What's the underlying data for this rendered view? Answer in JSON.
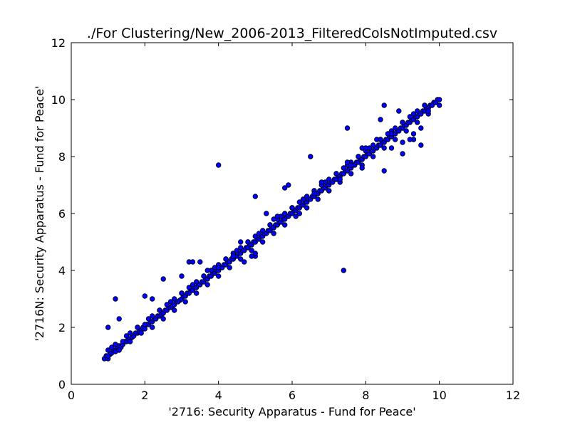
{
  "chart_data": {
    "type": "scatter",
    "title": "./For Clustering/New_2006-2013_FilteredColsNotImputed.csv",
    "xlabel": "'2716: Security Apparatus - Fund for Peace'",
    "ylabel": "'2716N: Security Apparatus - Fund for Peace'",
    "xlim": [
      0,
      12
    ],
    "ylim": [
      0,
      12
    ],
    "xticks": [
      "0",
      "2",
      "4",
      "6",
      "8",
      "10",
      "12"
    ],
    "yticks": [
      "0",
      "2",
      "4",
      "6",
      "8",
      "10",
      "12"
    ],
    "grid": false,
    "legend": "none",
    "marker_color": "#0000ff",
    "marker_edge_color": "#000000",
    "series": [
      {
        "x": [
          0.9,
          0.95,
          1.0,
          1.05,
          1.1,
          1.15,
          1.2,
          1.25,
          1.3,
          1.35,
          1.4,
          1.45,
          1.5,
          1.55,
          1.6,
          1.65,
          1.7,
          1.75,
          1.8,
          1.85,
          1.9,
          1.95,
          2.0,
          2.05,
          2.1,
          2.15,
          2.2,
          2.25,
          2.3,
          2.35,
          2.4,
          2.45,
          2.5,
          2.55,
          2.6,
          2.65,
          2.7,
          2.75,
          2.8,
          2.85,
          2.9,
          2.95,
          3.0,
          3.05,
          3.1,
          3.15,
          3.2,
          3.25,
          3.3,
          3.35,
          3.4,
          3.45,
          3.5,
          3.55,
          3.6,
          3.65,
          3.7,
          3.75,
          3.8,
          3.85,
          3.9,
          3.95,
          4.0,
          4.05,
          4.1,
          4.15,
          4.2,
          4.25,
          4.3,
          4.35,
          4.4,
          4.45,
          4.5,
          4.55,
          4.6,
          4.65,
          4.7,
          4.75,
          4.8,
          4.85,
          4.9,
          4.95,
          5.0,
          5.05,
          5.1,
          5.15,
          5.2,
          5.25,
          5.3,
          5.35,
          5.4,
          5.45,
          5.5,
          5.55,
          5.6,
          5.65,
          5.7,
          5.75,
          5.8,
          5.85,
          5.9,
          5.95,
          6.0,
          6.05,
          6.1,
          6.15,
          6.2,
          6.25,
          6.3,
          6.35,
          6.4,
          6.45,
          6.5,
          6.55,
          6.6,
          6.65,
          6.7,
          6.75,
          6.8,
          6.85,
          6.9,
          6.95,
          7.0,
          7.05,
          7.1,
          7.15,
          7.2,
          7.25,
          7.3,
          7.35,
          7.4,
          7.45,
          7.5,
          7.55,
          7.6,
          7.65,
          7.7,
          7.75,
          7.8,
          7.85,
          7.9,
          7.95,
          8.0,
          8.05,
          8.1,
          8.15,
          8.2,
          8.25,
          8.3,
          8.35,
          8.4,
          8.45,
          8.5,
          8.55,
          8.6,
          8.65,
          8.7,
          8.75,
          8.8,
          8.85,
          8.9,
          8.95,
          9.0,
          9.05,
          9.1,
          9.15,
          9.2,
          9.25,
          9.3,
          9.35,
          9.4,
          9.45,
          9.5,
          9.55,
          9.6,
          9.65,
          9.7,
          9.75,
          9.8,
          9.85,
          9.9,
          9.95,
          10.0,
          1.0,
          1.1,
          1.2,
          1.4,
          1.6,
          1.8,
          2.0,
          2.2,
          2.4,
          2.6,
          2.8,
          3.0,
          3.2,
          3.4,
          3.6,
          3.8,
          4.0,
          4.2,
          4.4,
          4.6,
          4.8,
          5.0,
          5.2,
          5.4,
          5.6,
          5.8,
          6.0,
          6.2,
          6.4,
          6.6,
          6.8,
          7.0,
          7.2,
          7.4,
          7.6,
          7.8,
          8.0,
          8.2,
          8.4,
          8.6,
          8.8,
          9.0,
          9.2,
          9.4,
          9.6,
          9.8,
          10.0,
          1.0,
          1.3,
          1.6,
          1.9,
          2.2,
          2.5,
          2.8,
          3.1,
          3.4,
          3.7,
          4.0,
          4.3,
          4.6,
          4.9,
          5.2,
          5.5,
          5.8,
          6.1,
          6.4,
          6.7,
          7.0,
          7.3,
          7.6,
          7.9,
          8.2,
          8.5,
          8.8,
          9.1,
          9.4,
          9.7,
          1.2,
          1.5,
          1.8,
          2.1,
          2.4,
          2.7,
          3.0,
          3.3,
          3.6,
          3.9,
          4.2,
          4.5,
          4.8,
          5.1,
          5.4,
          5.7,
          6.0,
          6.3,
          6.6,
          6.9,
          7.2,
          7.5,
          7.8,
          8.1,
          8.4,
          8.7,
          9.0,
          9.3,
          9.6,
          9.9,
          1.2,
          1.0,
          1.3,
          2.0,
          2.2,
          2.5,
          3.2,
          3.3,
          3.0,
          3.5,
          3.7,
          4.0,
          4.0,
          4.4,
          4.6,
          5.0,
          5.0,
          5.3,
          5.5,
          5.8,
          5.9,
          6.5,
          7.3,
          7.4,
          7.5,
          7.9,
          8.4,
          8.5,
          8.7,
          8.9,
          9.0,
          9.3,
          9.5,
          8.5,
          8.7,
          9.0,
          9.3,
          9.5,
          9.7,
          6.2,
          6.6,
          7.5,
          7.9,
          8.3,
          9.2,
          6.0,
          7.0,
          7.6,
          8.0,
          5.0,
          4.7,
          4.9,
          5.6,
          6.3,
          6.8
        ],
        "y": [
          0.9,
          1.0,
          0.9,
          1.05,
          1.1,
          1.2,
          1.15,
          1.3,
          1.35,
          1.3,
          1.4,
          1.5,
          1.5,
          1.6,
          1.6,
          1.65,
          1.7,
          1.8,
          1.8,
          1.85,
          1.9,
          2.0,
          1.95,
          2.1,
          2.1,
          2.2,
          2.2,
          2.3,
          2.3,
          2.4,
          2.4,
          2.45,
          2.5,
          2.6,
          2.6,
          2.7,
          2.7,
          2.75,
          2.8,
          2.9,
          2.9,
          2.95,
          3.0,
          3.1,
          3.1,
          3.2,
          3.2,
          3.3,
          3.3,
          3.4,
          3.4,
          3.5,
          3.5,
          3.6,
          3.6,
          3.7,
          3.7,
          3.8,
          3.8,
          3.9,
          3.9,
          4.0,
          4.0,
          4.1,
          4.1,
          4.2,
          4.2,
          4.3,
          4.3,
          4.4,
          4.4,
          4.5,
          4.5,
          4.6,
          4.6,
          4.7,
          4.7,
          4.8,
          4.8,
          4.9,
          4.9,
          5.0,
          5.0,
          5.1,
          5.1,
          5.2,
          5.2,
          5.3,
          5.3,
          5.4,
          5.4,
          5.5,
          5.5,
          5.6,
          5.6,
          5.7,
          5.7,
          5.8,
          5.8,
          5.9,
          5.9,
          6.0,
          6.0,
          6.1,
          6.1,
          6.2,
          6.2,
          6.3,
          6.3,
          6.4,
          6.4,
          6.5,
          6.5,
          6.6,
          6.6,
          6.7,
          6.7,
          6.8,
          6.8,
          6.9,
          6.9,
          7.0,
          7.0,
          7.1,
          7.1,
          7.2,
          7.2,
          7.3,
          7.3,
          7.4,
          7.4,
          7.5,
          7.5,
          7.6,
          7.6,
          7.7,
          7.7,
          7.8,
          7.8,
          7.9,
          7.9,
          8.0,
          8.0,
          8.1,
          8.1,
          8.2,
          8.2,
          8.3,
          8.3,
          8.4,
          8.4,
          8.5,
          8.5,
          8.6,
          8.6,
          8.7,
          8.7,
          8.8,
          8.8,
          8.9,
          8.9,
          9.0,
          9.0,
          9.1,
          9.1,
          9.2,
          9.2,
          9.3,
          9.3,
          9.4,
          9.4,
          9.5,
          9.5,
          9.6,
          9.6,
          9.7,
          9.7,
          9.8,
          9.8,
          9.9,
          9.9,
          10.0,
          10.0,
          1.2,
          1.3,
          1.4,
          1.5,
          1.8,
          2.0,
          2.1,
          2.4,
          2.6,
          2.8,
          3.0,
          3.2,
          3.4,
          3.6,
          3.8,
          4.0,
          4.2,
          4.4,
          4.6,
          4.8,
          5.0,
          5.2,
          5.4,
          5.6,
          5.8,
          6.0,
          6.2,
          6.4,
          6.6,
          6.8,
          7.0,
          7.2,
          7.4,
          7.6,
          7.8,
          8.0,
          8.2,
          8.4,
          8.6,
          8.8,
          9.0,
          9.2,
          9.4,
          9.6,
          9.8,
          9.8,
          9.8,
          1.0,
          1.2,
          1.5,
          1.8,
          2.0,
          2.3,
          2.6,
          2.9,
          3.2,
          3.5,
          3.8,
          4.1,
          4.4,
          4.7,
          5.0,
          5.3,
          5.6,
          5.9,
          6.2,
          6.5,
          6.8,
          7.1,
          7.4,
          7.7,
          8.0,
          8.3,
          8.6,
          8.9,
          9.2,
          9.5,
          1.4,
          1.7,
          2.0,
          2.3,
          2.6,
          2.9,
          3.2,
          3.5,
          3.8,
          4.1,
          4.4,
          4.7,
          5.0,
          5.3,
          5.6,
          5.9,
          6.2,
          6.5,
          6.8,
          7.1,
          7.4,
          7.7,
          8.0,
          8.3,
          8.6,
          8.9,
          9.2,
          9.5,
          9.8,
          9.9,
          3.0,
          2.0,
          2.3,
          3.1,
          3.0,
          3.7,
          4.3,
          4.3,
          3.8,
          4.3,
          4.0,
          4.1,
          7.7,
          4.5,
          5.0,
          6.6,
          4.5,
          6.0,
          5.8,
          6.9,
          7.0,
          8.0,
          7.2,
          4.0,
          9.0,
          8.3,
          9.3,
          9.8,
          8.8,
          9.6,
          8.1,
          8.6,
          8.4,
          7.5,
          8.3,
          8.5,
          8.8,
          9.0,
          9.6,
          6.0,
          6.7,
          7.8,
          7.6,
          8.6,
          8.6,
          6.2,
          6.8,
          7.7,
          8.3,
          4.6,
          4.3,
          4.5,
          5.9,
          6.5,
          7.1
        ]
      }
    ]
  }
}
